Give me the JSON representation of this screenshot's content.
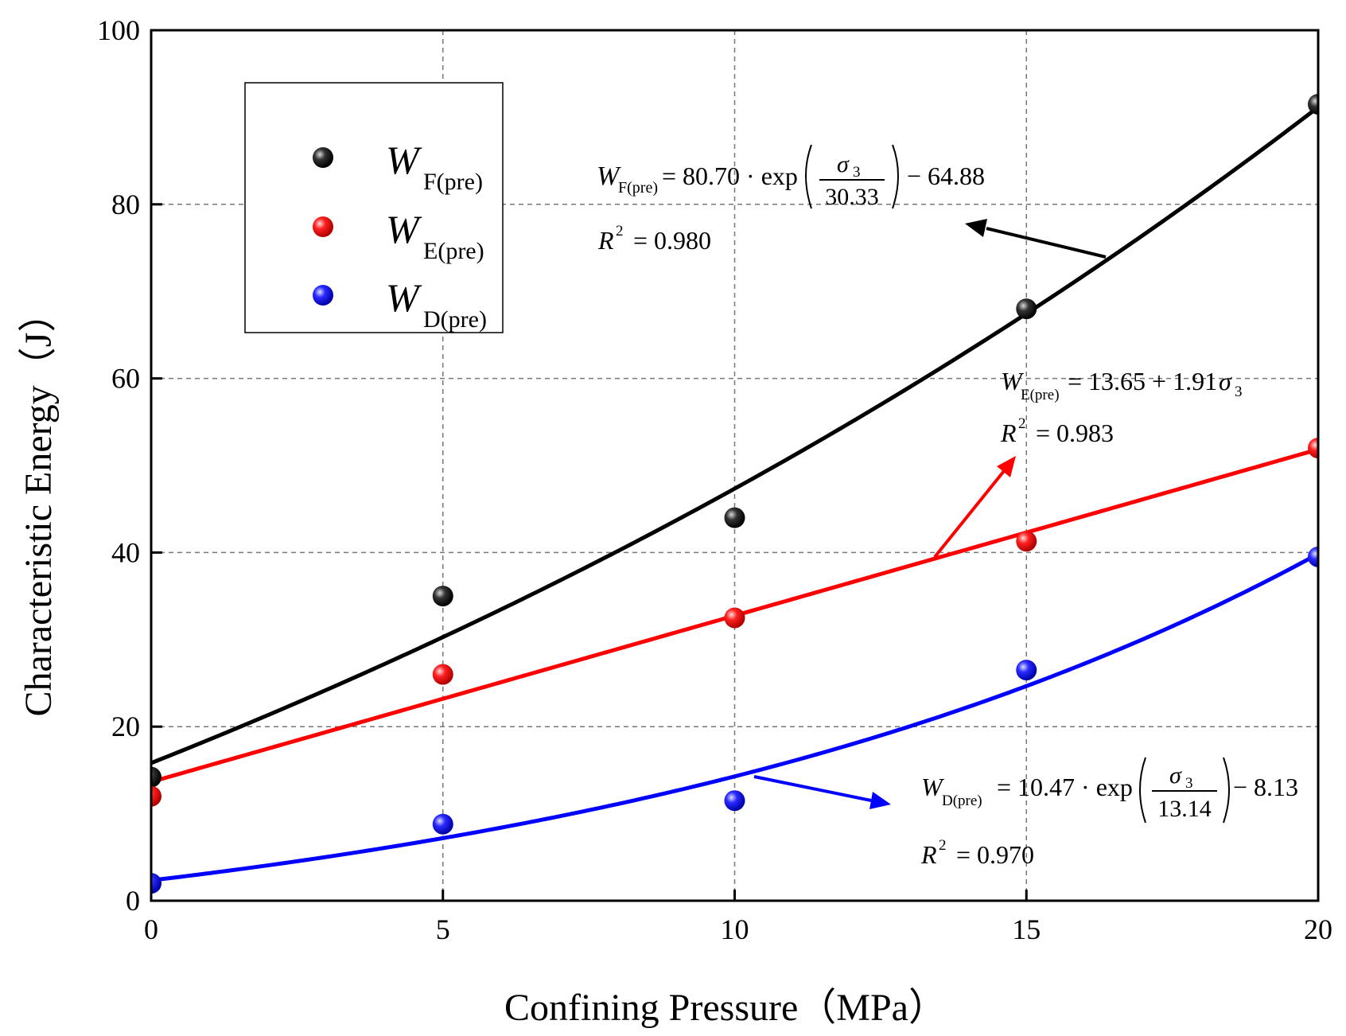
{
  "chart_data": {
    "type": "scatter",
    "xlabel": "Confining Pressure（MPa）",
    "ylabel": "Characteristic Energy（J）",
    "xlim": [
      0,
      20
    ],
    "ylim": [
      0,
      100
    ],
    "xticks": [
      "0",
      "5",
      "10",
      "15",
      "20"
    ],
    "yticks": [
      "0",
      "20",
      "40",
      "60",
      "80",
      "100"
    ],
    "grid": true,
    "legend_position": "top-left",
    "x": [
      0,
      5,
      10,
      15,
      20
    ],
    "series": [
      {
        "name": "W_F(pre)",
        "legend_main": "W",
        "legend_sub": "F(pre)",
        "color": "#000000",
        "values": [
          14.2,
          35.0,
          44.0,
          68.0,
          91.5
        ],
        "fit": {
          "kind": "exp",
          "a": 80.7,
          "b": 30.33,
          "c": -64.88
        },
        "equation": {
          "lhs": "W",
          "lhs_sub": "F(pre)",
          "eq": "= 80.70 · exp",
          "num": "σ",
          "num_sub": "3",
          "den": "30.33",
          "tail": "− 64.88"
        },
        "r2": {
          "label": "R",
          "sup": "2",
          "value": "= 0.980"
        }
      },
      {
        "name": "W_E(pre)",
        "legend_main": "W",
        "legend_sub": "E(pre)",
        "color": "#ff0000",
        "values": [
          12.0,
          26.0,
          32.5,
          41.3,
          52.0
        ],
        "fit": {
          "kind": "linear",
          "a": 13.65,
          "b": 1.91
        },
        "equation": {
          "lhs": "W",
          "lhs_sub": "E(pre)",
          "eq": "= 13.65 + 1.91",
          "sigma": "σ",
          "sigma_sub": "3"
        },
        "r2": {
          "label": "R",
          "sup": "2",
          "value": "= 0.983"
        }
      },
      {
        "name": "W_D(pre)",
        "legend_main": "W",
        "legend_sub": "D(pre)",
        "color": "#0000ff",
        "values": [
          2.0,
          8.8,
          11.5,
          26.5,
          39.5
        ],
        "fit": {
          "kind": "exp",
          "a": 10.47,
          "b": 13.14,
          "c": -8.13
        },
        "equation": {
          "lhs": "W",
          "lhs_sub": "D(pre)",
          "eq": "= 10.47 · exp",
          "num": "σ",
          "num_sub": "3",
          "den": "13.14",
          "tail": "− 8.13"
        },
        "r2": {
          "label": "R",
          "sup": "2",
          "value": "= 0.970"
        }
      }
    ]
  }
}
